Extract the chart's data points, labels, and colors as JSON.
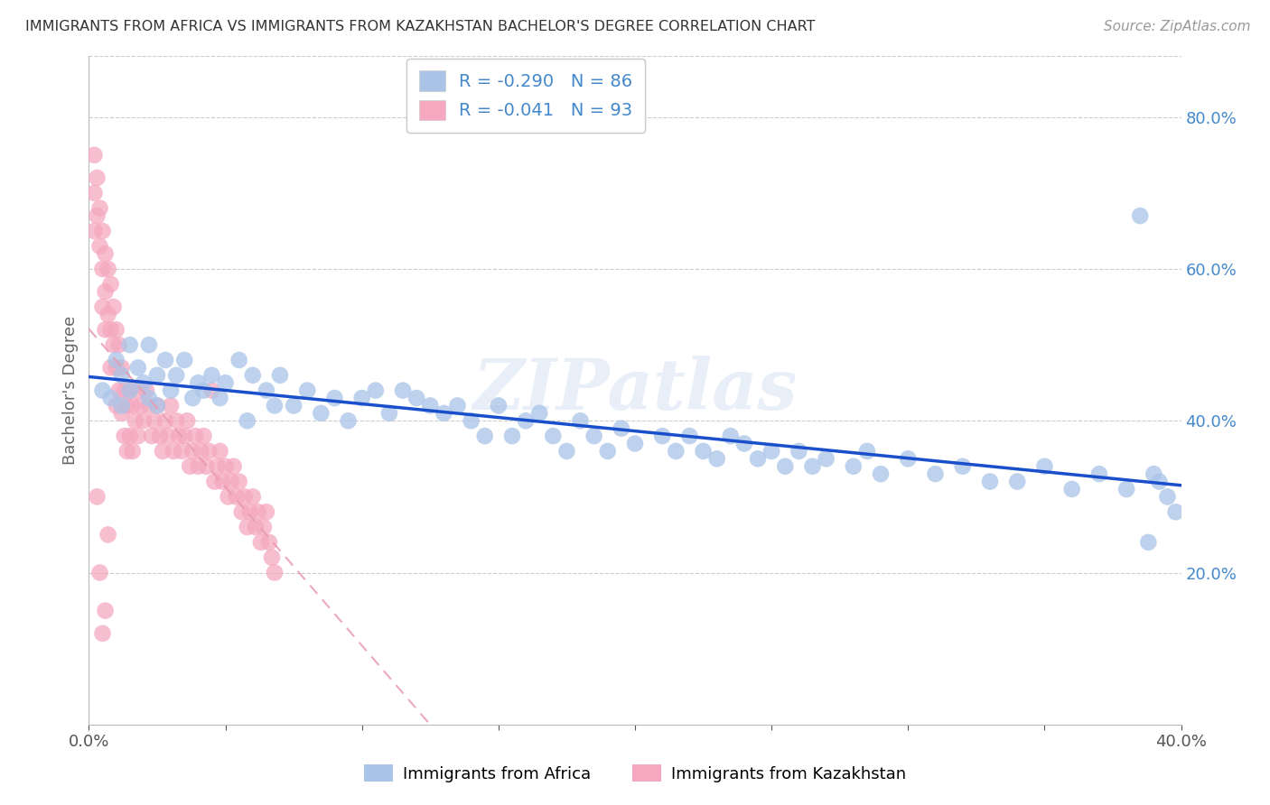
{
  "title": "IMMIGRANTS FROM AFRICA VS IMMIGRANTS FROM KAZAKHSTAN BACHELOR'S DEGREE CORRELATION CHART",
  "source": "Source: ZipAtlas.com",
  "ylabel": "Bachelor's Degree",
  "legend_label1": "Immigrants from Africa",
  "legend_label2": "Immigrants from Kazakhstan",
  "R1": -0.29,
  "N1": 86,
  "R2": -0.041,
  "N2": 93,
  "color_africa": "#aac4e8",
  "color_kazakhstan": "#f5a8c0",
  "trendline_africa_color": "#1a4fcc",
  "trendline_kazakhstan_color": "#e89ab0",
  "xlim": [
    0.0,
    0.4
  ],
  "ylim": [
    0.0,
    0.88
  ],
  "xtick_labels": [
    "0.0%",
    "",
    "",
    "",
    "",
    "",
    "",
    "",
    "40.0%"
  ],
  "yticks_right": [
    0.2,
    0.4,
    0.6,
    0.8
  ],
  "watermark": "ZIPatlas",
  "background_color": "#ffffff",
  "grid_color": "#cccccc",
  "title_color": "#333333",
  "right_axis_color": "#4488cc",
  "africa_x": [
    0.005,
    0.008,
    0.01,
    0.012,
    0.012,
    0.015,
    0.015,
    0.018,
    0.02,
    0.022,
    0.022,
    0.025,
    0.025,
    0.028,
    0.03,
    0.032,
    0.035,
    0.038,
    0.04,
    0.042,
    0.045,
    0.048,
    0.05,
    0.055,
    0.058,
    0.06,
    0.065,
    0.068,
    0.07,
    0.075,
    0.08,
    0.085,
    0.09,
    0.095,
    0.1,
    0.105,
    0.11,
    0.115,
    0.12,
    0.125,
    0.13,
    0.135,
    0.14,
    0.145,
    0.15,
    0.155,
    0.16,
    0.165,
    0.17,
    0.175,
    0.18,
    0.185,
    0.19,
    0.195,
    0.2,
    0.21,
    0.215,
    0.22,
    0.225,
    0.23,
    0.235,
    0.24,
    0.245,
    0.25,
    0.255,
    0.26,
    0.265,
    0.27,
    0.28,
    0.285,
    0.29,
    0.3,
    0.31,
    0.32,
    0.33,
    0.34,
    0.35,
    0.36,
    0.37,
    0.38,
    0.385,
    0.388,
    0.39,
    0.392,
    0.395,
    0.398
  ],
  "africa_y": [
    0.44,
    0.43,
    0.48,
    0.42,
    0.46,
    0.5,
    0.44,
    0.47,
    0.45,
    0.5,
    0.43,
    0.46,
    0.42,
    0.48,
    0.44,
    0.46,
    0.48,
    0.43,
    0.45,
    0.44,
    0.46,
    0.43,
    0.45,
    0.48,
    0.4,
    0.46,
    0.44,
    0.42,
    0.46,
    0.42,
    0.44,
    0.41,
    0.43,
    0.4,
    0.43,
    0.44,
    0.41,
    0.44,
    0.43,
    0.42,
    0.41,
    0.42,
    0.4,
    0.38,
    0.42,
    0.38,
    0.4,
    0.41,
    0.38,
    0.36,
    0.4,
    0.38,
    0.36,
    0.39,
    0.37,
    0.38,
    0.36,
    0.38,
    0.36,
    0.35,
    0.38,
    0.37,
    0.35,
    0.36,
    0.34,
    0.36,
    0.34,
    0.35,
    0.34,
    0.36,
    0.33,
    0.35,
    0.33,
    0.34,
    0.32,
    0.32,
    0.34,
    0.31,
    0.33,
    0.31,
    0.67,
    0.24,
    0.33,
    0.32,
    0.3,
    0.28
  ],
  "kazakhstan_x": [
    0.002,
    0.002,
    0.002,
    0.003,
    0.003,
    0.003,
    0.004,
    0.004,
    0.004,
    0.005,
    0.005,
    0.005,
    0.005,
    0.006,
    0.006,
    0.006,
    0.006,
    0.007,
    0.007,
    0.007,
    0.008,
    0.008,
    0.008,
    0.009,
    0.009,
    0.01,
    0.01,
    0.01,
    0.011,
    0.011,
    0.012,
    0.012,
    0.013,
    0.013,
    0.014,
    0.014,
    0.015,
    0.015,
    0.016,
    0.016,
    0.017,
    0.018,
    0.018,
    0.019,
    0.02,
    0.021,
    0.022,
    0.023,
    0.024,
    0.025,
    0.026,
    0.027,
    0.028,
    0.029,
    0.03,
    0.031,
    0.032,
    0.033,
    0.034,
    0.035,
    0.036,
    0.037,
    0.038,
    0.039,
    0.04,
    0.041,
    0.042,
    0.043,
    0.044,
    0.045,
    0.046,
    0.047,
    0.048,
    0.049,
    0.05,
    0.051,
    0.052,
    0.053,
    0.054,
    0.055,
    0.056,
    0.057,
    0.058,
    0.059,
    0.06,
    0.061,
    0.062,
    0.063,
    0.064,
    0.065,
    0.066,
    0.067,
    0.068
  ],
  "kazakhstan_y": [
    0.75,
    0.7,
    0.65,
    0.72,
    0.67,
    0.3,
    0.68,
    0.63,
    0.2,
    0.65,
    0.6,
    0.55,
    0.12,
    0.62,
    0.57,
    0.52,
    0.15,
    0.6,
    0.54,
    0.25,
    0.58,
    0.52,
    0.47,
    0.55,
    0.5,
    0.52,
    0.47,
    0.42,
    0.5,
    0.44,
    0.47,
    0.41,
    0.44,
    0.38,
    0.42,
    0.36,
    0.44,
    0.38,
    0.42,
    0.36,
    0.4,
    0.44,
    0.38,
    0.42,
    0.4,
    0.44,
    0.42,
    0.38,
    0.4,
    0.42,
    0.38,
    0.36,
    0.4,
    0.38,
    0.42,
    0.36,
    0.4,
    0.38,
    0.36,
    0.38,
    0.4,
    0.34,
    0.36,
    0.38,
    0.34,
    0.36,
    0.38,
    0.34,
    0.36,
    0.44,
    0.32,
    0.34,
    0.36,
    0.32,
    0.34,
    0.3,
    0.32,
    0.34,
    0.3,
    0.32,
    0.28,
    0.3,
    0.26,
    0.28,
    0.3,
    0.26,
    0.28,
    0.24,
    0.26,
    0.28,
    0.24,
    0.22,
    0.2
  ]
}
